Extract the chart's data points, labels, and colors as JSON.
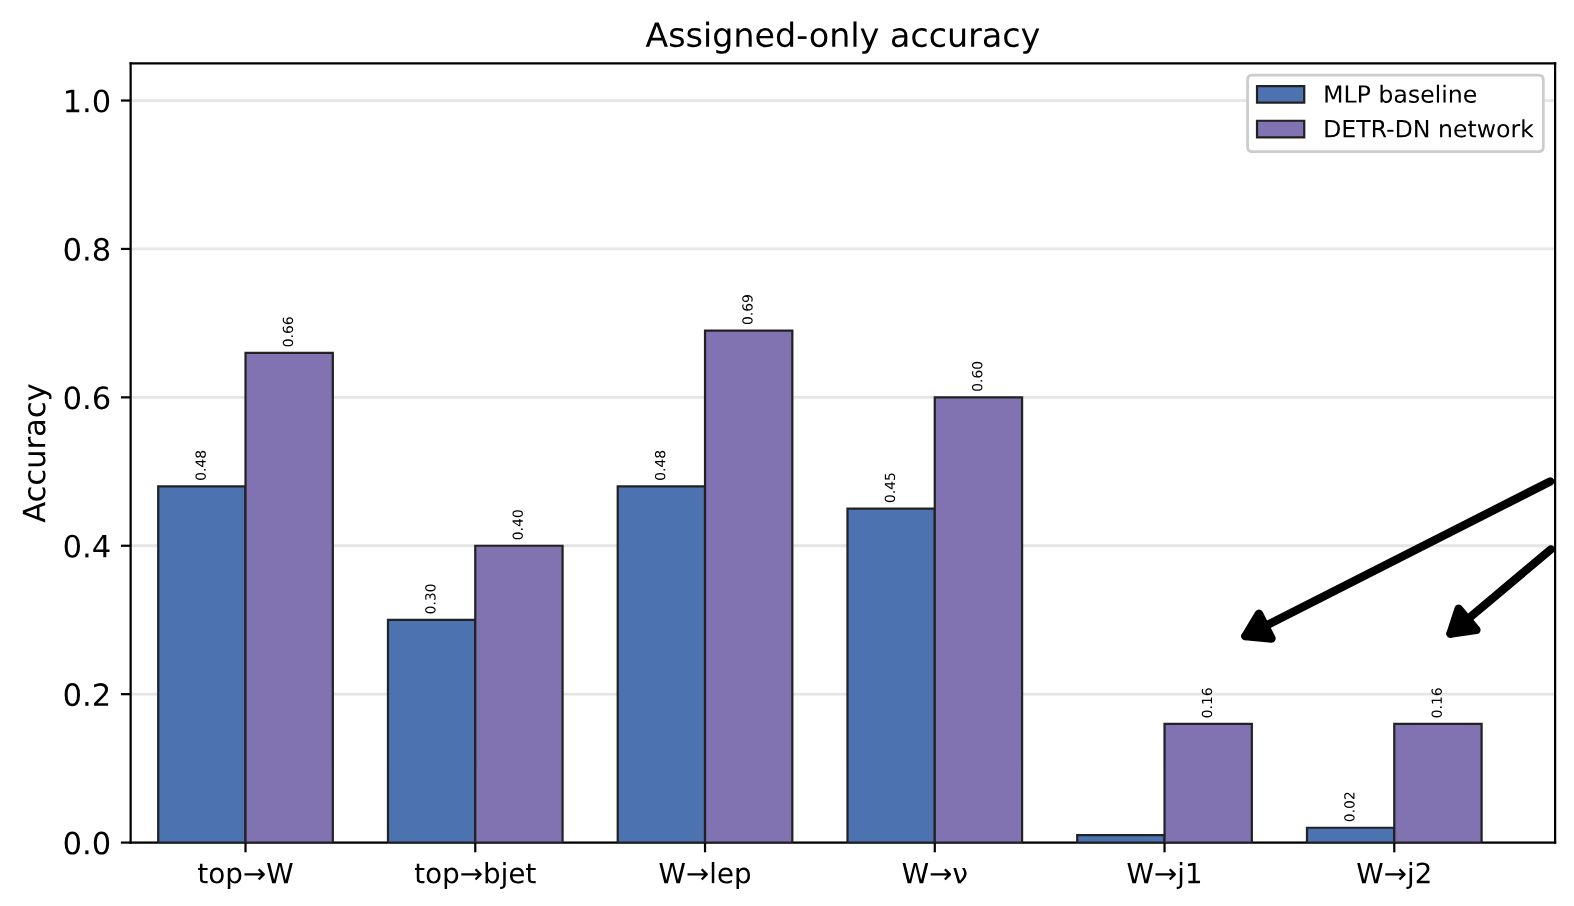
{
  "chart_data": {
    "type": "bar",
    "title": "Assigned-only accuracy",
    "ylabel": "Accuracy",
    "categories": [
      "top→W",
      "top→bjet",
      "W→lep",
      "W→ν",
      "W→j1",
      "W→j2"
    ],
    "series": [
      {
        "name": "MLP baseline",
        "color": "#4c72b0",
        "values": [
          0.48,
          0.3,
          0.48,
          0.45,
          0.01,
          0.02
        ],
        "value_labels": [
          "0.48",
          "0.30",
          "0.48",
          "0.45",
          null,
          "0.02"
        ]
      },
      {
        "name": "DETR-DN network",
        "color": "#8172b2",
        "values": [
          0.66,
          0.4,
          0.69,
          0.6,
          0.16,
          0.16
        ],
        "value_labels": [
          "0.66",
          "0.40",
          "0.69",
          "0.60",
          "0.16",
          "0.16"
        ]
      }
    ],
    "ylim": [
      0,
      1.05
    ],
    "yticks": [
      {
        "value": 0.0,
        "label": "0.0"
      },
      {
        "value": 0.2,
        "label": "0.2"
      },
      {
        "value": 0.4,
        "label": "0.4"
      },
      {
        "value": 0.6,
        "label": "0.6"
      },
      {
        "value": 0.8,
        "label": "0.8"
      },
      {
        "value": 1.0,
        "label": "1.0"
      }
    ],
    "grid": "y",
    "legend": "top right"
  }
}
